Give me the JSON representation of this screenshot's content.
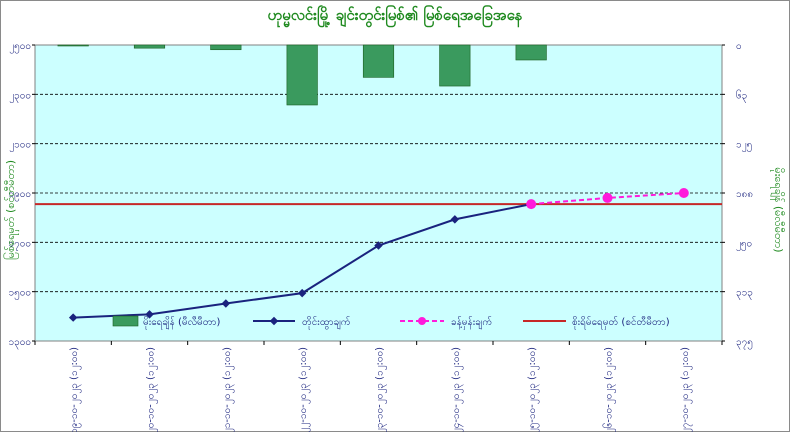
{
  "chart_data": {
    "type": "bar+line",
    "title": "ဟုမ္မလင်းမြို့ ချင်းတွင်းမြစ်၏ မြစ်ရေအခြေအနေ",
    "ylabel_left": "မြစ်ရေမှတ် (စင်တီမီတာ)",
    "ylabel_right": "မိုးရေချိန် (မီလီမီတာ)",
    "left_axis": {
      "min": 1300,
      "max": 2500,
      "step": 200,
      "tick_labels": [
        "၁၃၀၀",
        "၁၅၀၀",
        "၁၇၀၀",
        "၁၉၀၀",
        "၂၁၀၀",
        "၂၃၀၀",
        "၂၅၀၀"
      ]
    },
    "right_axis": {
      "min": 0,
      "max": 375,
      "step": 62.5,
      "reversed": true,
      "tick_labels": [
        "၀",
        "၆၃",
        "၁၂၅",
        "၁၈၈",
        "၂၅၀",
        "၃၁၃",
        "၃၇၅"
      ]
    },
    "categories": [
      "၁၉-၁၀-၂၀၂၃ (၁၂:၀၀)",
      "၂၀-၁၀-၂၀၂၃ (၁၂:၀၀)",
      "၂၁-၁၀-၂၀၂၃ (၁၂:၀၀)",
      "၂၂-၁၀-၂၀၂၃ (၁၂:၀၀)",
      "၂၃-၁၀-၂၀၂၃ (၁၂:၀၀)",
      "၂၄-၁၀-၂၀၂၃ (၁၂:၀၀)",
      "၂၅-၁၀-၂၀၂၃ (၁၂:၀၀)",
      "၂၆-၁၀-၂၀၂၃ (၁၂:၀၀)",
      "၂၇-၁၀-၂၀၂၃ (၁၂:၀၀)"
    ],
    "series": [
      {
        "name": "မိုးရေချိန် (မီလီမီတာ)",
        "type": "bar",
        "axis": "right",
        "color": "#3a9a5e",
        "values": [
          1,
          4,
          6,
          76,
          41,
          52,
          19,
          null,
          null
        ]
      },
      {
        "name": "တိုင်းထွာချက်",
        "type": "line",
        "axis": "left",
        "color": "#1a237e",
        "values": [
          1395,
          1408,
          1452,
          1494,
          1687,
          1793,
          1855,
          null,
          null
        ]
      },
      {
        "name": "ခန့်မှန်းချက်",
        "type": "line-dashed",
        "axis": "left",
        "color": "#ff1adb",
        "values": [
          null,
          null,
          null,
          null,
          null,
          null,
          1855,
          1880,
          1900
        ]
      },
      {
        "name": "စိုးရိမ်ရေမှတ် (စင်တီမီတာ)",
        "type": "hline",
        "axis": "left",
        "color": "#c62828",
        "value": 1855
      }
    ],
    "grid": true,
    "legend_position": "inside-bottom"
  }
}
